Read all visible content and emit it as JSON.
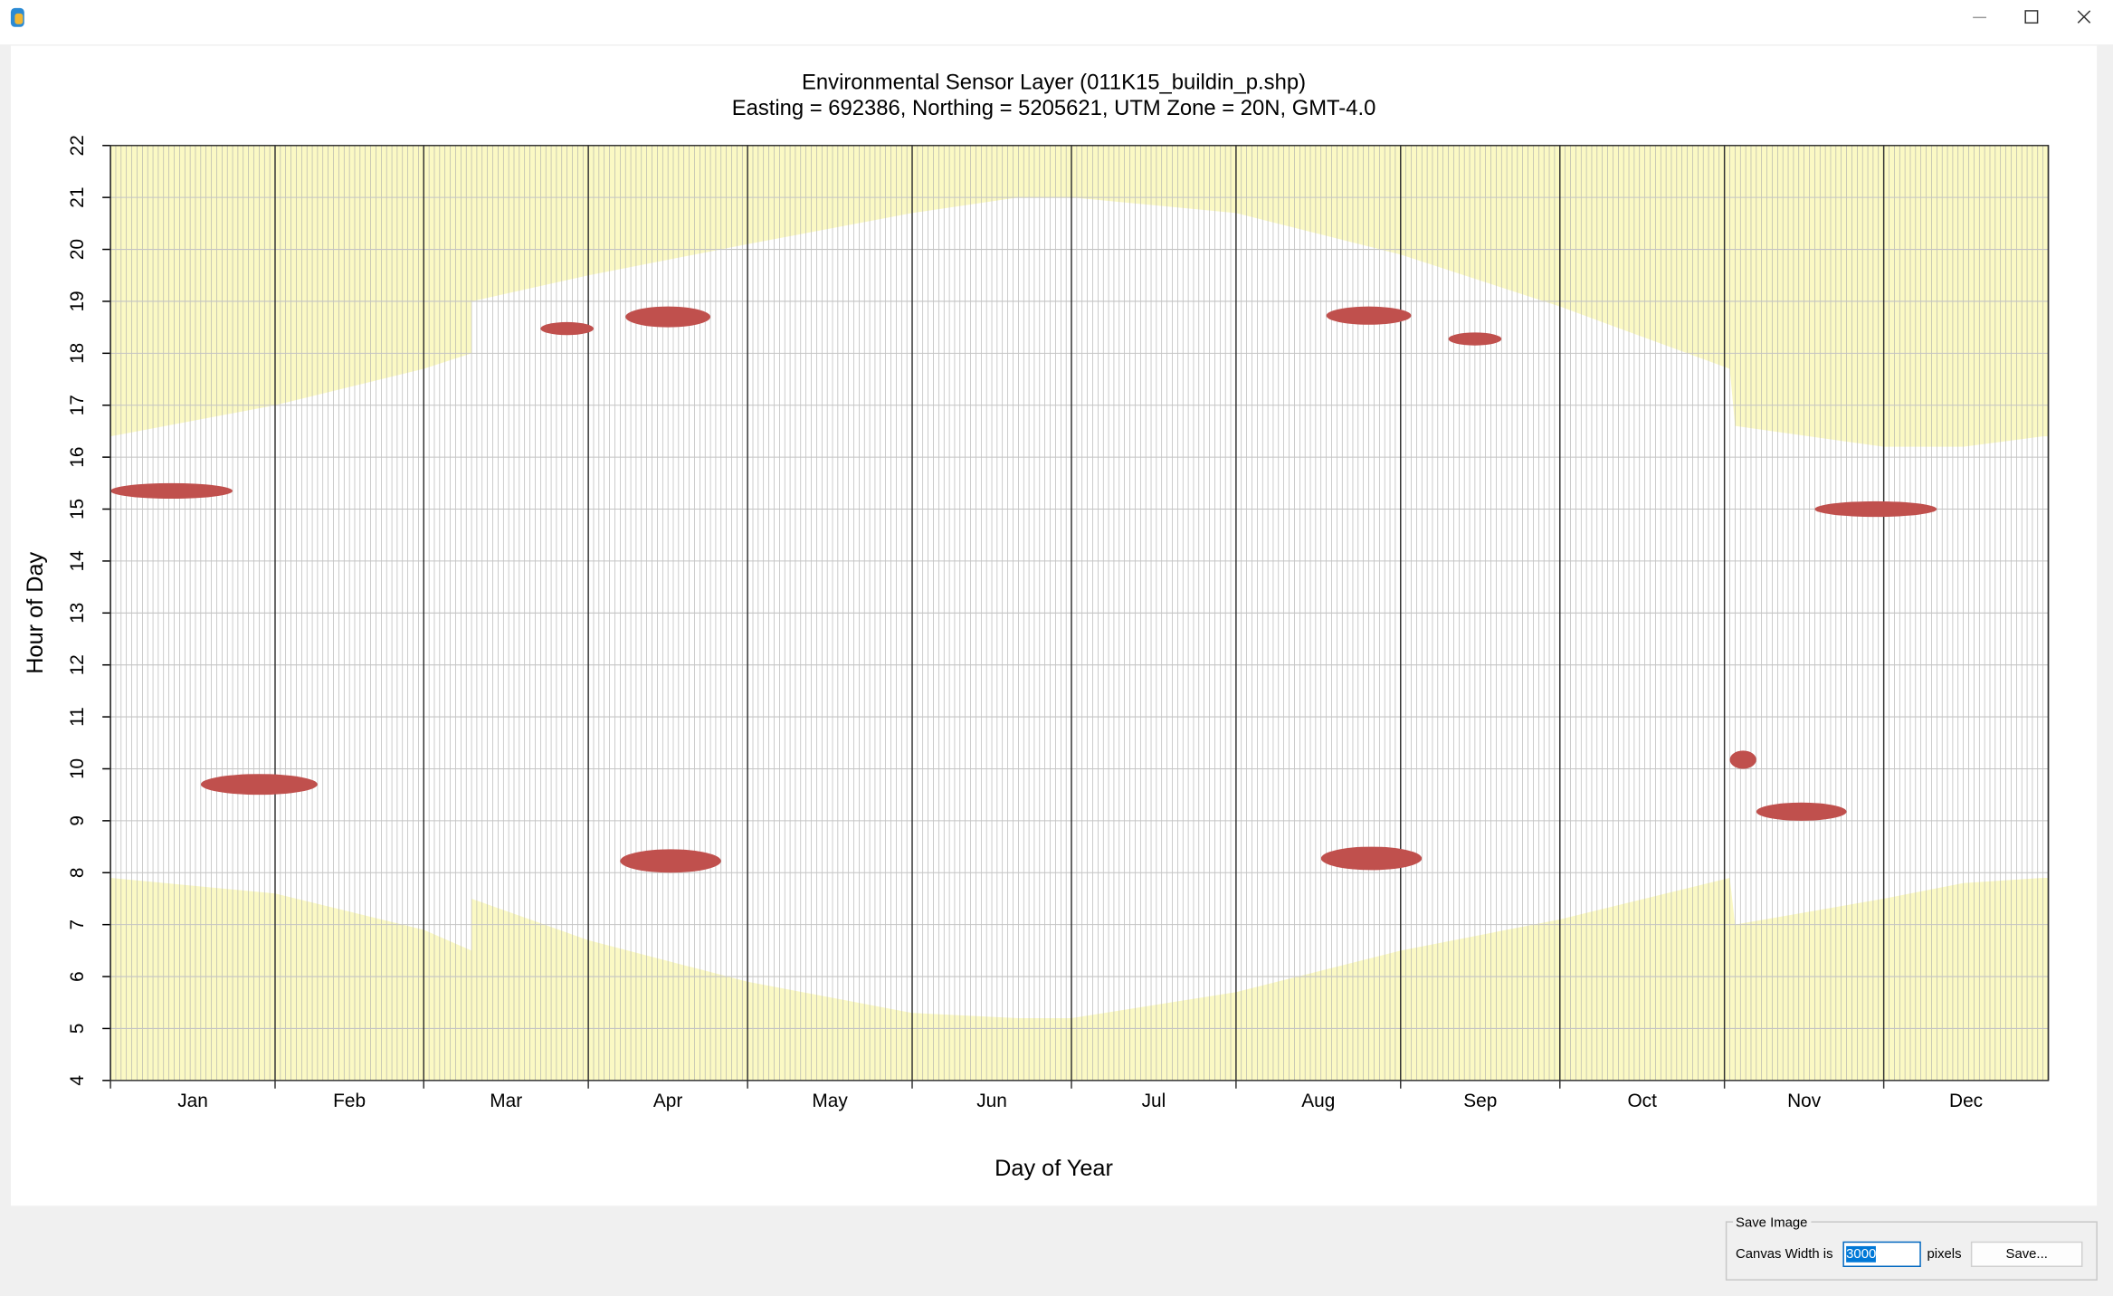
{
  "chart_data": {
    "type": "sunpath",
    "title": "Environmental Sensor Layer (011K15_buildin_p.shp)",
    "subtitle": "Easting = 692386, Northing = 5205621, UTM Zone = 20N, GMT-4.0",
    "x_label": "Day of Year",
    "y_label": "Hour of Day",
    "categories": [
      "Jan",
      "Feb",
      "Mar",
      "Apr",
      "May",
      "Jun",
      "Jul",
      "Aug",
      "Sep",
      "Oct",
      "Nov",
      "Dec"
    ],
    "month_starts": [
      1,
      32,
      60,
      91,
      121,
      152,
      182,
      213,
      244,
      274,
      305,
      335
    ],
    "xlim": [
      1,
      366
    ],
    "ylim": [
      4,
      22
    ],
    "yticks": [
      4,
      5,
      6,
      7,
      8,
      9,
      10,
      11,
      12,
      13,
      14,
      15,
      16,
      17,
      18,
      19,
      20,
      21,
      22
    ],
    "grid": true,
    "x": [
      1,
      32,
      60,
      69,
      69,
      91,
      121,
      152,
      172,
      182,
      213,
      244,
      274,
      306,
      307,
      335,
      350,
      365
    ],
    "series": [
      {
        "color": "#fbf9c4",
        "fill_to": "bottom",
        "values": [
          7.9,
          7.6,
          6.9,
          6.5,
          7.5,
          6.7,
          5.9,
          5.3,
          5.2,
          5.2,
          5.7,
          6.5,
          7.1,
          7.9,
          7.0,
          7.5,
          7.8,
          7.9
        ]
      },
      {
        "color": "#fbf9c4",
        "fill_to": "top",
        "values": [
          16.4,
          17.0,
          17.7,
          18.0,
          19.0,
          19.5,
          20.1,
          20.7,
          21.0,
          21.0,
          20.7,
          19.9,
          18.9,
          17.7,
          16.6,
          16.2,
          16.2,
          16.4
        ]
      }
    ],
    "shadows": {
      "color": "#c0504d",
      "items": [
        {
          "x": [
            1,
            24
          ],
          "y": [
            15.2,
            15.5
          ]
        },
        {
          "x": [
            18,
            40
          ],
          "y": [
            9.5,
            9.9
          ]
        },
        {
          "x": [
            82,
            92
          ],
          "y": [
            18.35,
            18.6
          ]
        },
        {
          "x": [
            98,
            114
          ],
          "y": [
            18.5,
            18.9
          ]
        },
        {
          "x": [
            97,
            116
          ],
          "y": [
            8.0,
            8.45
          ]
        },
        {
          "x": [
            230,
            246
          ],
          "y": [
            18.55,
            18.9
          ]
        },
        {
          "x": [
            229,
            248
          ],
          "y": [
            8.05,
            8.5
          ]
        },
        {
          "x": [
            253,
            263
          ],
          "y": [
            18.15,
            18.4
          ]
        },
        {
          "x": [
            306,
            311
          ],
          "y": [
            10.0,
            10.35
          ]
        },
        {
          "x": [
            311,
            328
          ],
          "y": [
            9.0,
            9.35
          ]
        },
        {
          "x": [
            322,
            345
          ],
          "y": [
            14.85,
            15.15
          ]
        }
      ]
    }
  },
  "save_panel": {
    "title": "Save Image",
    "label": "Canvas Width is",
    "input": "3000",
    "unit": "pixels",
    "button": "Save..."
  }
}
